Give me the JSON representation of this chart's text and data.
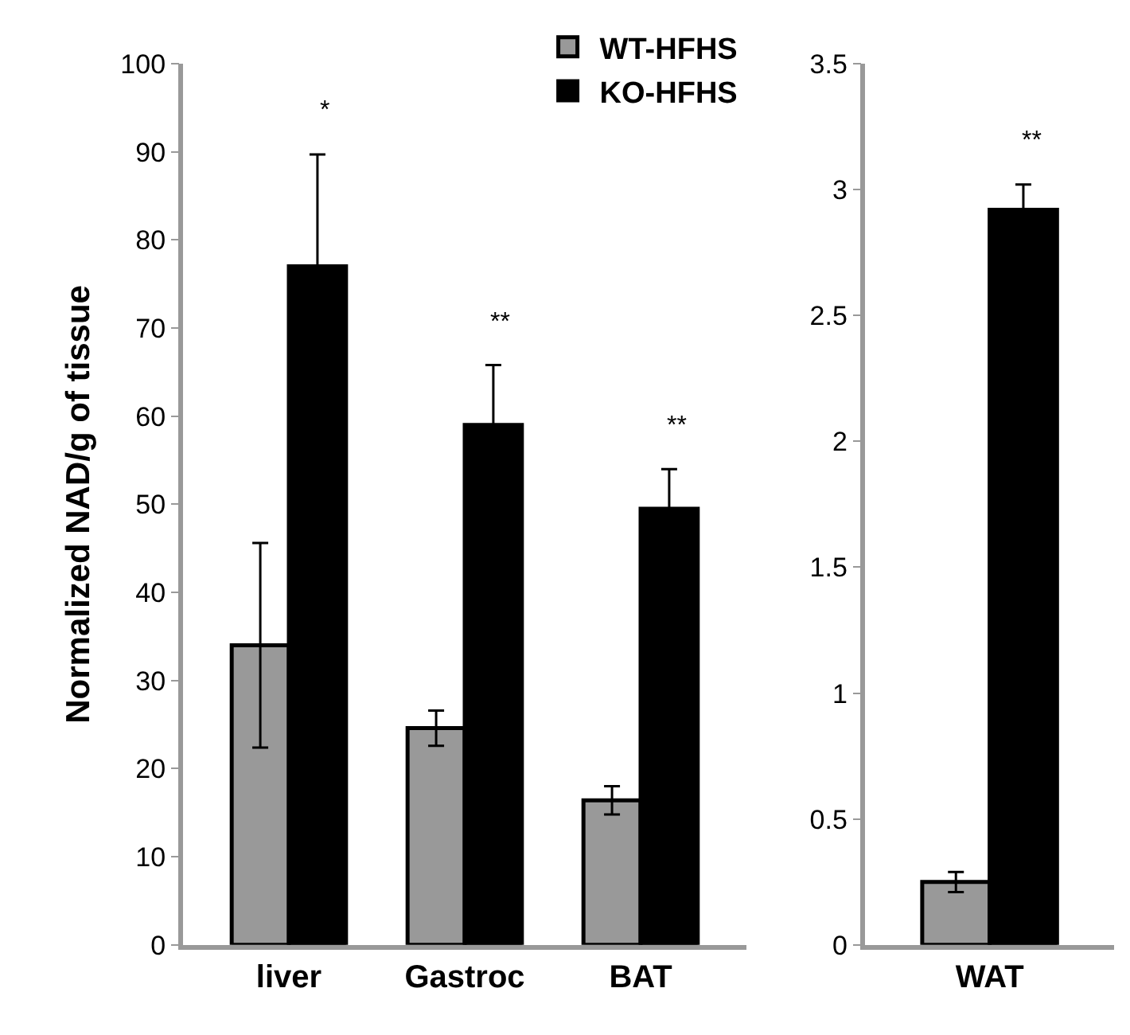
{
  "chart_data": [
    {
      "type": "bar",
      "ylabel": "Normalized NAD/g of tissue",
      "categories": [
        "liver",
        "Gastroc",
        "BAT"
      ],
      "series": [
        {
          "name": "WT-HFHS",
          "color": "#999999",
          "values": [
            34,
            24.6,
            16.4
          ],
          "errors": [
            11.6,
            2,
            1.6
          ]
        },
        {
          "name": "KO-HFHS",
          "color": "#000000",
          "values": [
            77,
            59,
            49.5
          ],
          "errors": [
            12.7,
            6.8,
            4.5
          ]
        }
      ],
      "ylim": [
        0,
        100
      ],
      "yticks": [
        0,
        10,
        20,
        30,
        40,
        50,
        60,
        70,
        80,
        90,
        100
      ],
      "legend": "top right",
      "annotations": [
        "*",
        "**",
        "**"
      ]
    },
    {
      "type": "bar",
      "categories": [
        "WAT"
      ],
      "series": [
        {
          "color": "#999999",
          "values": [
            0.25
          ],
          "errors": [
            0.04
          ]
        },
        {
          "color": "#000000",
          "values": [
            2.92
          ],
          "errors": [
            0.1
          ]
        }
      ],
      "ylim": [
        0,
        3.5
      ],
      "yticks": [
        0,
        0.5,
        1,
        1.5,
        2,
        2.5,
        3,
        3.5
      ],
      "annotations": [
        "**"
      ]
    }
  ]
}
